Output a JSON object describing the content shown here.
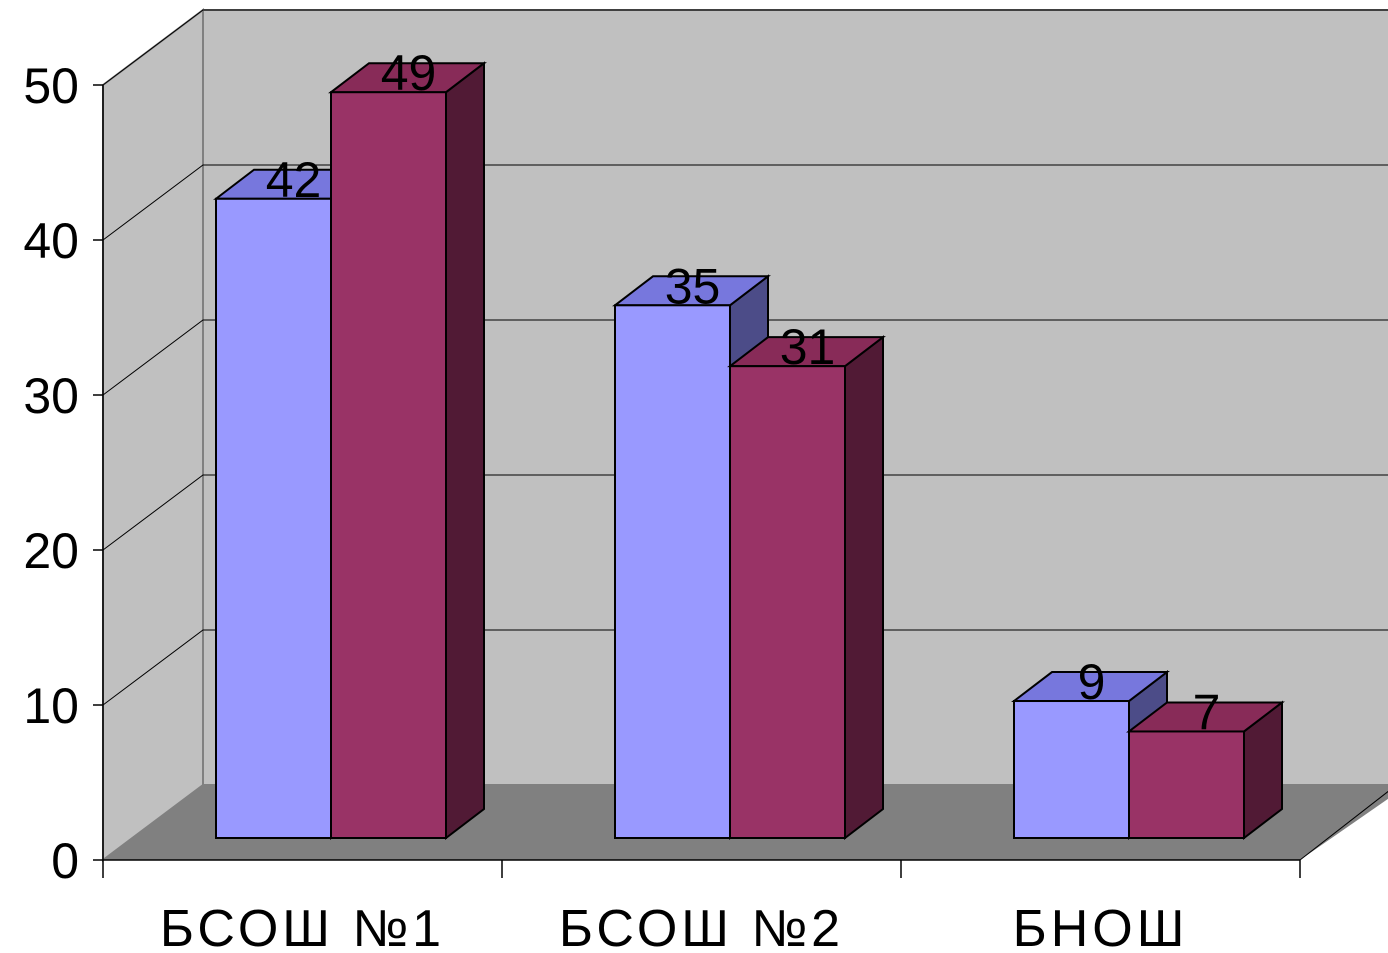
{
  "chart_data": {
    "type": "bar",
    "categories": [
      "БСОШ №1",
      "БСОШ №2",
      "БНОШ"
    ],
    "series": [
      {
        "values": [
          42,
          35,
          9
        ],
        "color": "#9999ff"
      },
      {
        "values": [
          49,
          31,
          7
        ],
        "color": "#993366"
      }
    ],
    "ylim": [
      0,
      50
    ],
    "yticks": [
      "0",
      "10",
      "20",
      "30",
      "40",
      "50"
    ],
    "grid": true,
    "three_d": true,
    "title": "",
    "xlabel": "",
    "ylabel": "",
    "legend": "none"
  },
  "colors": {
    "back_wall": "#c0c0c0",
    "side_wall": "#c0c0c0",
    "floor": "#808080",
    "gridline": "#000000",
    "series1_front": "#9999ff",
    "series1_top": "#7777dd",
    "series1_side": "#4c4c88",
    "series2_front": "#993366",
    "series2_top": "#882b58",
    "series2_side": "#511a35"
  }
}
